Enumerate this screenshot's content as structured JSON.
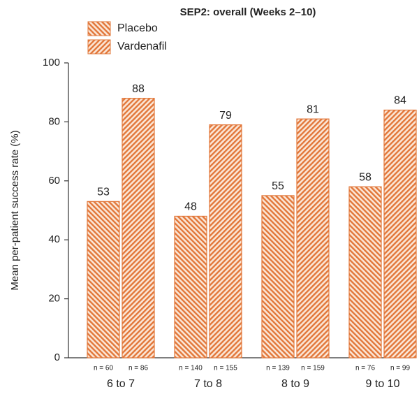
{
  "chart_data": {
    "type": "bar",
    "title": "SEP2: overall (Weeks 2–10)",
    "y_label": "Mean per-patient success rate (%)",
    "categories": [
      "6 to 7",
      "7 to 8",
      "8 to 9",
      "9 to 10"
    ],
    "series": [
      {
        "name": "Placebo",
        "color": "#e2773a",
        "hatch": "down",
        "values": [
          53,
          48,
          55,
          58
        ],
        "n_labels": [
          "n = 60",
          "n = 140",
          "n = 139",
          "n = 76"
        ]
      },
      {
        "name": "Vardenafil",
        "color": "#e2773a",
        "hatch": "up",
        "values": [
          88,
          79,
          81,
          84
        ],
        "n_labels": [
          "n = 86",
          "n = 155",
          "n = 159",
          "n = 99"
        ]
      }
    ],
    "ylim": [
      0,
      100
    ],
    "yticks": [
      0,
      20,
      40,
      60,
      80,
      100
    ],
    "grid": false
  }
}
